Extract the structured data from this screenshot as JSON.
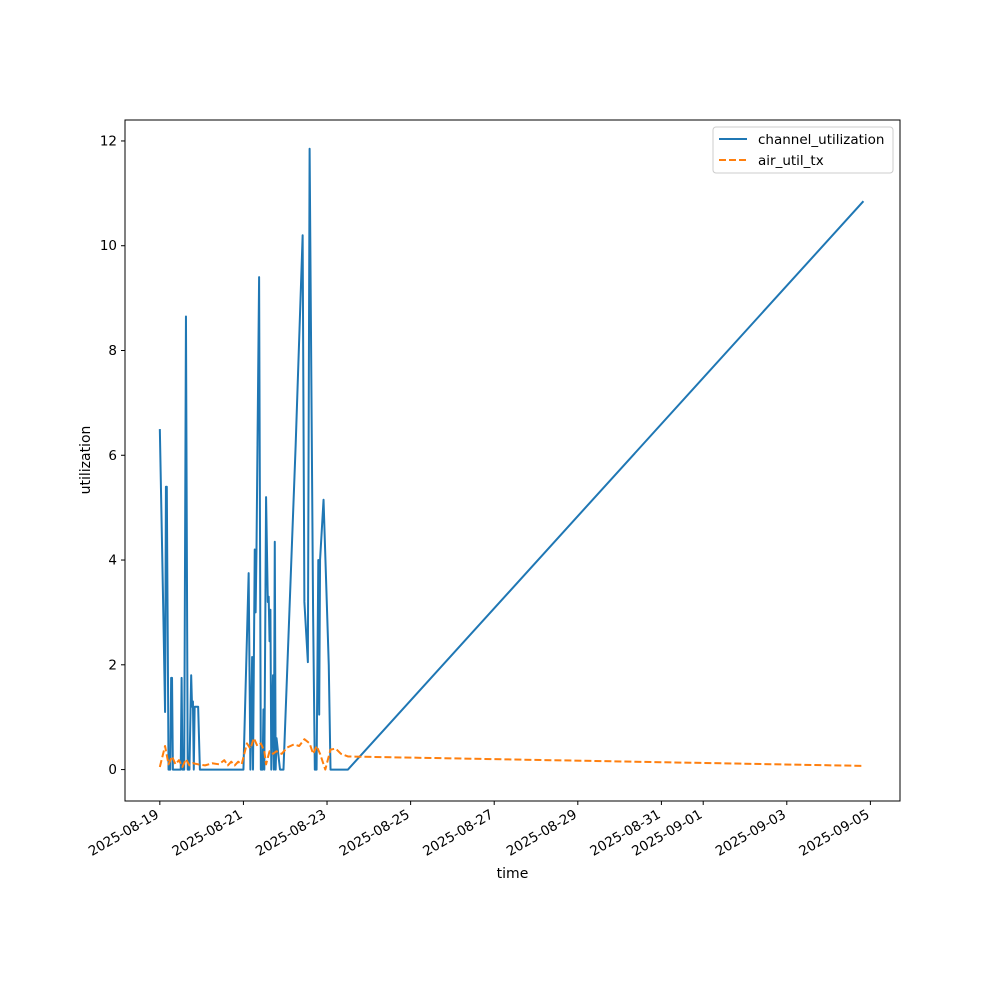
{
  "chart_data": {
    "type": "line",
    "title": "",
    "xlabel": "time",
    "ylabel": "utilization",
    "xlim": [
      "2025-08-18 04:00",
      "2025-09-05 17:00"
    ],
    "ylim": [
      -0.6,
      12.4
    ],
    "grid": false,
    "legend_position": "top-right",
    "x_tick_labels": [
      "2025-08-19",
      "2025-08-21",
      "2025-08-23",
      "2025-08-25",
      "2025-08-27",
      "2025-08-29",
      "2025-08-31",
      "2025-09-01",
      "2025-09-03",
      "2025-09-05"
    ],
    "y_ticks": [
      0,
      2,
      4,
      6,
      8,
      10,
      12
    ],
    "series": [
      {
        "name": "channel_utilization",
        "color": "#1f77b4",
        "style": "solid",
        "points": [
          [
            "2025-08-19 00:00",
            6.5
          ],
          [
            "2025-08-19 02:00",
            3.0
          ],
          [
            "2025-08-19 03:00",
            1.1
          ],
          [
            "2025-08-19 03:30",
            5.4
          ],
          [
            "2025-08-19 04:00",
            5.4
          ],
          [
            "2025-08-19 05:00",
            0.0
          ],
          [
            "2025-08-19 06:00",
            0.0
          ],
          [
            "2025-08-19 06:30",
            1.75
          ],
          [
            "2025-08-19 07:00",
            1.75
          ],
          [
            "2025-08-19 07:30",
            0.0
          ],
          [
            "2025-08-19 12:00",
            0.0
          ],
          [
            "2025-08-19 12:30",
            1.75
          ],
          [
            "2025-08-19 13:00",
            0.0
          ],
          [
            "2025-08-19 14:00",
            0.0
          ],
          [
            "2025-08-19 15:00",
            8.65
          ],
          [
            "2025-08-19 16:00",
            0.0
          ],
          [
            "2025-08-19 17:00",
            0.0
          ],
          [
            "2025-08-19 18:00",
            1.8
          ],
          [
            "2025-08-19 18:30",
            1.2
          ],
          [
            "2025-08-19 19:00",
            1.3
          ],
          [
            "2025-08-19 19:30",
            0.0
          ],
          [
            "2025-08-19 20:00",
            1.2
          ],
          [
            "2025-08-19 22:00",
            1.2
          ],
          [
            "2025-08-19 23:00",
            0.0
          ],
          [
            "2025-08-21 00:00",
            0.0
          ],
          [
            "2025-08-21 03:00",
            3.75
          ],
          [
            "2025-08-21 04:00",
            0.0
          ],
          [
            "2025-08-21 05:00",
            2.15
          ],
          [
            "2025-08-21 05:30",
            0.0
          ],
          [
            "2025-08-21 06:30",
            4.2
          ],
          [
            "2025-08-21 07:00",
            3.0
          ],
          [
            "2025-08-21 07:30",
            4.2
          ],
          [
            "2025-08-21 09:00",
            9.4
          ],
          [
            "2025-08-21 10:00",
            0.0
          ],
          [
            "2025-08-21 11:00",
            0.0
          ],
          [
            "2025-08-21 11:30",
            1.15
          ],
          [
            "2025-08-21 12:00",
            0.0
          ],
          [
            "2025-08-21 13:00",
            5.2
          ],
          [
            "2025-08-21 14:00",
            3.2
          ],
          [
            "2025-08-21 14:30",
            3.3
          ],
          [
            "2025-08-21 15:00",
            2.45
          ],
          [
            "2025-08-21 15:30",
            3.05
          ],
          [
            "2025-08-21 16:00",
            0.0
          ],
          [
            "2025-08-21 17:00",
            1.8
          ],
          [
            "2025-08-21 17:30",
            0.0
          ],
          [
            "2025-08-21 18:00",
            4.35
          ],
          [
            "2025-08-21 18:30",
            0.0
          ],
          [
            "2025-08-21 19:00",
            0.6
          ],
          [
            "2025-08-21 20:00",
            0.3
          ],
          [
            "2025-08-21 21:00",
            0.0
          ],
          [
            "2025-08-21 23:00",
            0.0
          ],
          [
            "2025-08-22 06:00",
            6.2
          ],
          [
            "2025-08-22 10:00",
            10.2
          ],
          [
            "2025-08-22 11:00",
            3.2
          ],
          [
            "2025-08-22 13:00",
            2.05
          ],
          [
            "2025-08-22 14:00",
            11.85
          ],
          [
            "2025-08-22 16:00",
            3.0
          ],
          [
            "2025-08-22 17:00",
            0.0
          ],
          [
            "2025-08-22 18:00",
            0.0
          ],
          [
            "2025-08-22 19:00",
            4.0
          ],
          [
            "2025-08-22 19:30",
            1.05
          ],
          [
            "2025-08-22 20:00",
            4.0
          ],
          [
            "2025-08-22 22:00",
            5.15
          ],
          [
            "2025-08-23 01:00",
            2.0
          ],
          [
            "2025-08-23 02:00",
            0.0
          ],
          [
            "2025-08-23 12:00",
            0.0
          ],
          [
            "2025-09-04 20:00",
            10.85
          ]
        ]
      },
      {
        "name": "air_util_tx",
        "color": "#ff7f0e",
        "style": "dashed",
        "points": [
          [
            "2025-08-19 00:00",
            0.05
          ],
          [
            "2025-08-19 03:00",
            0.45
          ],
          [
            "2025-08-19 05:00",
            0.1
          ],
          [
            "2025-08-19 07:00",
            0.25
          ],
          [
            "2025-08-19 09:00",
            0.1
          ],
          [
            "2025-08-19 11:00",
            0.18
          ],
          [
            "2025-08-19 13:00",
            0.05
          ],
          [
            "2025-08-19 15:00",
            0.2
          ],
          [
            "2025-08-19 17:00",
            0.08
          ],
          [
            "2025-08-19 19:00",
            0.12
          ],
          [
            "2025-08-19 22:00",
            0.1
          ],
          [
            "2025-08-20 02:00",
            0.08
          ],
          [
            "2025-08-20 06:00",
            0.12
          ],
          [
            "2025-08-20 10:00",
            0.1
          ],
          [
            "2025-08-20 13:00",
            0.18
          ],
          [
            "2025-08-20 15:00",
            0.08
          ],
          [
            "2025-08-20 17:00",
            0.15
          ],
          [
            "2025-08-20 19:00",
            0.08
          ],
          [
            "2025-08-20 21:00",
            0.15
          ],
          [
            "2025-08-20 23:00",
            0.1
          ],
          [
            "2025-08-21 02:00",
            0.5
          ],
          [
            "2025-08-21 04:00",
            0.4
          ],
          [
            "2025-08-21 06:00",
            0.6
          ],
          [
            "2025-08-21 08:00",
            0.45
          ],
          [
            "2025-08-21 10:00",
            0.5
          ],
          [
            "2025-08-21 12:00",
            0.35
          ],
          [
            "2025-08-21 13:00",
            0.1
          ],
          [
            "2025-08-21 15:00",
            0.35
          ],
          [
            "2025-08-21 17:00",
            0.3
          ],
          [
            "2025-08-21 19:00",
            0.35
          ],
          [
            "2025-08-21 22:00",
            0.3
          ],
          [
            "2025-08-22 01:00",
            0.42
          ],
          [
            "2025-08-22 05:00",
            0.48
          ],
          [
            "2025-08-22 08:00",
            0.45
          ],
          [
            "2025-08-22 11:00",
            0.58
          ],
          [
            "2025-08-22 14:00",
            0.5
          ],
          [
            "2025-08-22 16:00",
            0.3
          ],
          [
            "2025-08-22 18:00",
            0.45
          ],
          [
            "2025-08-22 20:00",
            0.3
          ],
          [
            "2025-08-22 23:00",
            0.0
          ],
          [
            "2025-08-23 02:00",
            0.38
          ],
          [
            "2025-08-23 05:00",
            0.4
          ],
          [
            "2025-08-23 08:00",
            0.3
          ],
          [
            "2025-08-23 12:00",
            0.25
          ],
          [
            "2025-09-04 20:00",
            0.07
          ]
        ]
      }
    ]
  }
}
